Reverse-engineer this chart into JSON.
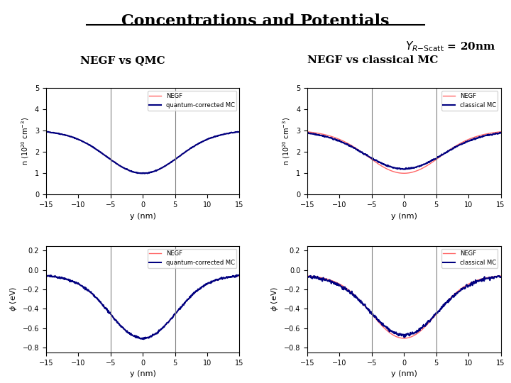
{
  "title": "Concentrations and Potentials",
  "label_left_top": "NEGF vs QMC",
  "label_right_top": "NEGF vs classical MC",
  "color_negf": "#FF6666",
  "color_qmc": "#000080",
  "color_classical": "#000080",
  "color_vline": "#808080",
  "x_range": [
    -15,
    15
  ],
  "conc_ylim": [
    0,
    5
  ],
  "pot_ylim": [
    -0.85,
    0.25
  ],
  "conc_yticks": [
    0,
    1,
    2,
    3,
    4,
    5
  ],
  "pot_yticks": [
    -0.8,
    -0.6,
    -0.4,
    -0.2,
    0,
    0.2
  ],
  "xlabel": "y (nm)",
  "vline_positions": [
    -5,
    5
  ],
  "background": "#ffffff"
}
